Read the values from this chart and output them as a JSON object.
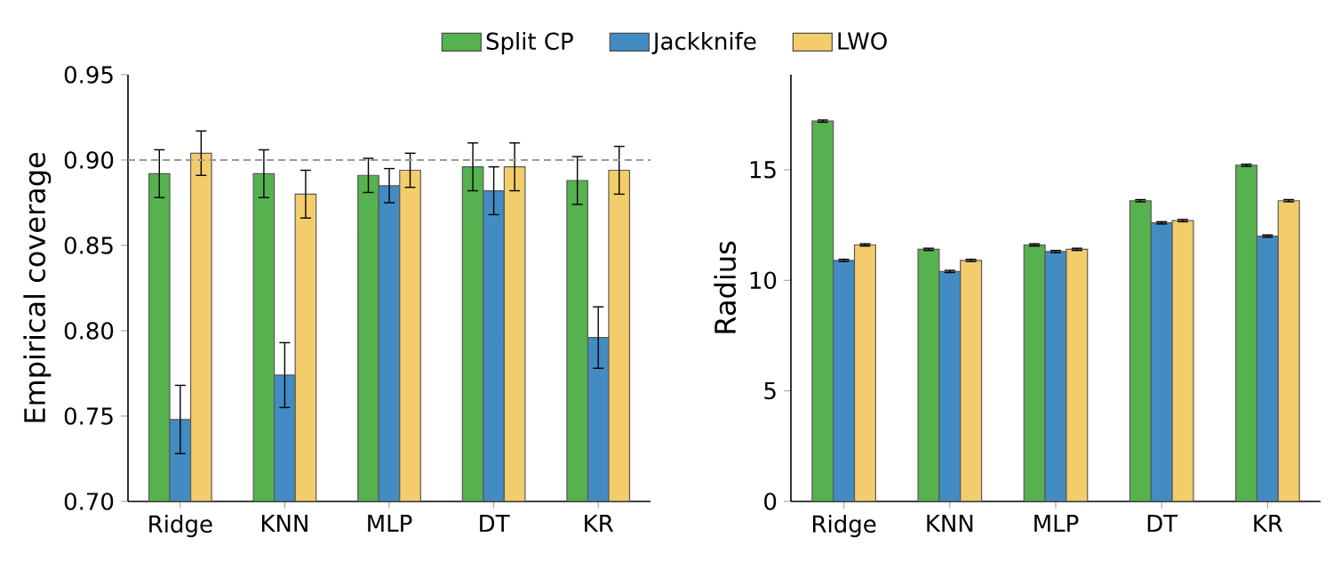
{
  "chart_data": [
    {
      "type": "bar",
      "ylabel": "Empirical coverage",
      "categories": [
        "Ridge",
        "KNN",
        "MLP",
        "DT",
        "KR"
      ],
      "ylim": [
        0.7,
        0.95
      ],
      "yticks": [
        {
          "value": 0.7,
          "label": "0.70"
        },
        0.75,
        {
          "value": 0.8,
          "label": "0.80"
        },
        0.85,
        {
          "value": 0.9,
          "label": "0.90"
        },
        0.95
      ],
      "legend": "top",
      "ref_lines": [
        {
          "axis": "y",
          "value": 0.9,
          "color": "#999999",
          "line_style": "dashed"
        }
      ],
      "series": [
        {
          "name": "Split CP",
          "color": "#55b24f",
          "values": [
            0.892,
            0.892,
            0.891,
            0.896,
            0.888
          ],
          "errors": [
            0.014,
            0.014,
            0.01,
            0.014,
            0.014
          ]
        },
        {
          "name": "Jackknife",
          "color": "#428cc3",
          "values": [
            0.748,
            0.774,
            0.885,
            0.882,
            0.796
          ],
          "errors": [
            0.02,
            0.019,
            0.01,
            0.014,
            0.018
          ]
        },
        {
          "name": "LWO",
          "color": "#f3cd6c",
          "values": [
            0.904,
            0.88,
            0.894,
            0.896,
            0.894
          ],
          "errors": [
            0.013,
            0.014,
            0.01,
            0.014,
            0.014
          ]
        }
      ]
    },
    {
      "type": "bar",
      "ylabel": "Radius",
      "categories": [
        "Ridge",
        "KNN",
        "MLP",
        "DT",
        "KR"
      ],
      "ylim": [
        0,
        19.3
      ],
      "yticks": [
        0,
        5,
        10,
        15
      ],
      "series": [
        {
          "color": "#55b24f",
          "values": [
            17.2,
            11.4,
            11.6,
            13.6,
            15.2
          ],
          "errors": [
            0.05,
            0.05,
            0.05,
            0.05,
            0.05
          ]
        },
        {
          "color": "#428cc3",
          "values": [
            10.9,
            10.4,
            11.3,
            12.6,
            12.0
          ],
          "errors": [
            0.05,
            0.05,
            0.05,
            0.05,
            0.05
          ]
        },
        {
          "color": "#f3cd6c",
          "values": [
            11.6,
            10.9,
            11.4,
            12.7,
            13.6
          ],
          "errors": [
            0.05,
            0.05,
            0.05,
            0.05,
            0.05
          ]
        }
      ]
    }
  ]
}
